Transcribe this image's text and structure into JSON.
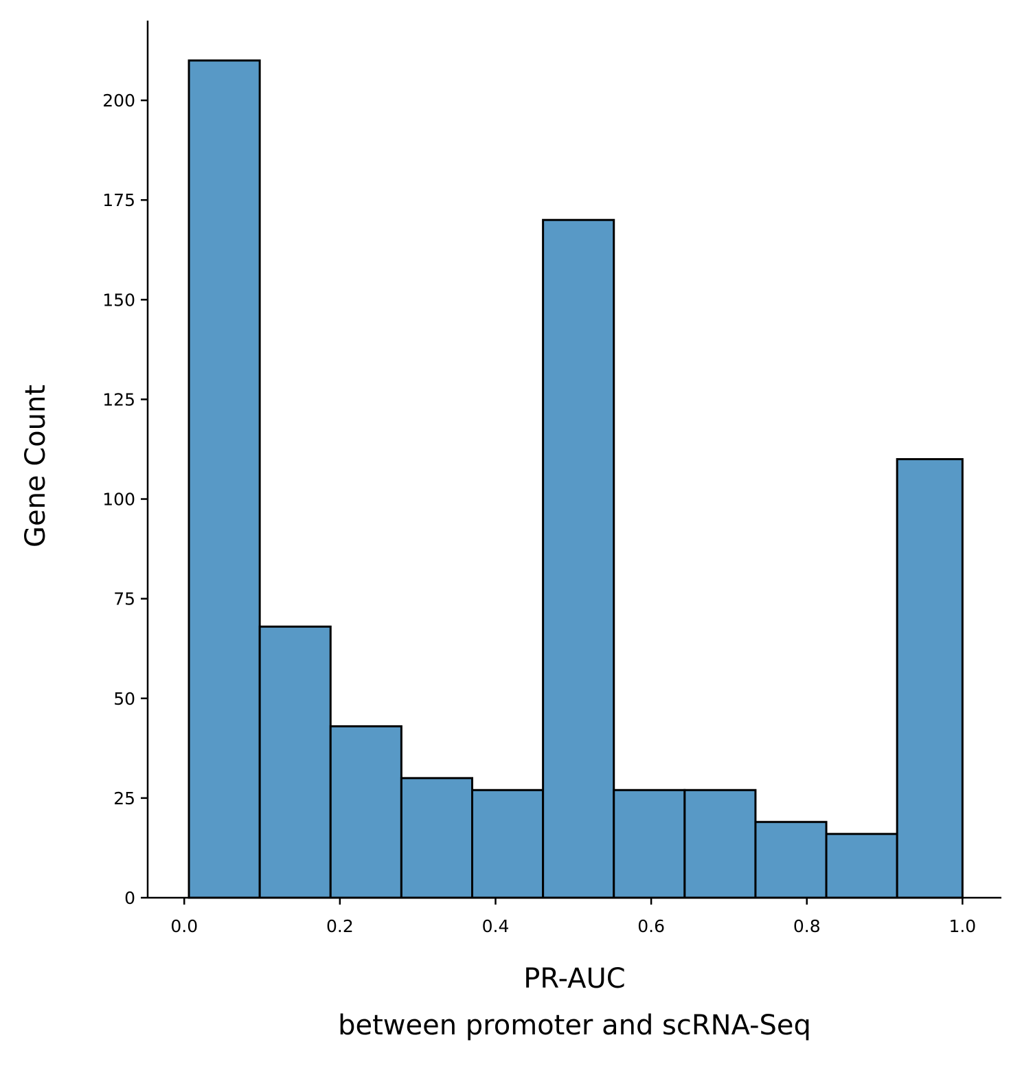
{
  "chart_data": {
    "type": "bar",
    "subtype": "histogram",
    "bin_edges": [
      0.006,
      0.097,
      0.188,
      0.279,
      0.37,
      0.461,
      0.552,
      0.643,
      0.734,
      0.825,
      0.916,
      1.0
    ],
    "values": [
      210,
      68,
      43,
      30,
      27,
      170,
      27,
      27,
      19,
      16,
      110
    ],
    "xlabel_line1": "PR-AUC",
    "xlabel_line2": "between promoter and scRNA-Seq",
    "ylabel": "Gene Count",
    "xlim": [
      -0.047,
      1.05
    ],
    "ylim": [
      0,
      220
    ],
    "xticks": [
      0.0,
      0.2,
      0.4,
      0.6,
      0.8,
      1.0
    ],
    "xtick_labels": [
      "0.0",
      "0.2",
      "0.4",
      "0.6",
      "0.8",
      "1.0"
    ],
    "yticks": [
      0,
      25,
      50,
      75,
      100,
      125,
      150,
      175,
      200
    ],
    "ytick_labels": [
      "0",
      "25",
      "50",
      "75",
      "100",
      "125",
      "150",
      "175",
      "200"
    ],
    "grid": false,
    "bar_color": "#5899c6",
    "edge_color": "#000000"
  }
}
